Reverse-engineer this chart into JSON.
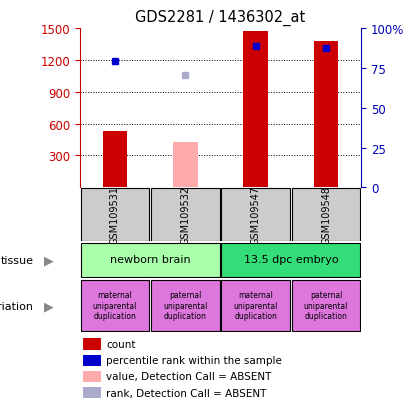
{
  "title": "GDS2281 / 1436302_at",
  "samples": [
    "GSM109531",
    "GSM109532",
    "GSM109547",
    "GSM109548"
  ],
  "bar_values": [
    530,
    430,
    1470,
    1380
  ],
  "bar_colors": [
    "#cc0000",
    "#ffaaaa",
    "#cc0000",
    "#cc0000"
  ],
  "dot_values": [
    1185,
    1055,
    1330,
    1310
  ],
  "dot_colors": [
    "#0000cc",
    "#aaaacc",
    "#0000cc",
    "#0000cc"
  ],
  "ylim_left": [
    0,
    1500
  ],
  "ylim_right": [
    0,
    100
  ],
  "yticks_left": [
    300,
    600,
    900,
    1200,
    1500
  ],
  "yticks_right": [
    0,
    25,
    50,
    75,
    100
  ],
  "tissue_labels": [
    "newborn brain",
    "13.5 dpc embryo"
  ],
  "tissue_colors": [
    "#aaffaa",
    "#33dd77"
  ],
  "genotype_labels": [
    "maternal\nuniparental\nduplication",
    "paternal\nuniparental\nduplication",
    "maternal\nuniparental\nduplication",
    "paternal\nuniparental\nduplication"
  ],
  "genotype_color": "#dd77dd",
  "sample_bg_color": "#cccccc",
  "legend_colors": [
    "#cc0000",
    "#0000cc",
    "#ffaaaa",
    "#aaaacc"
  ],
  "legend_labels": [
    "count",
    "percentile rank within the sample",
    "value, Detection Call = ABSENT",
    "rank, Detection Call = ABSENT"
  ],
  "left_yaxis_color": "#cc0000",
  "right_yaxis_color": "#0000bb",
  "bar_width": 0.35
}
